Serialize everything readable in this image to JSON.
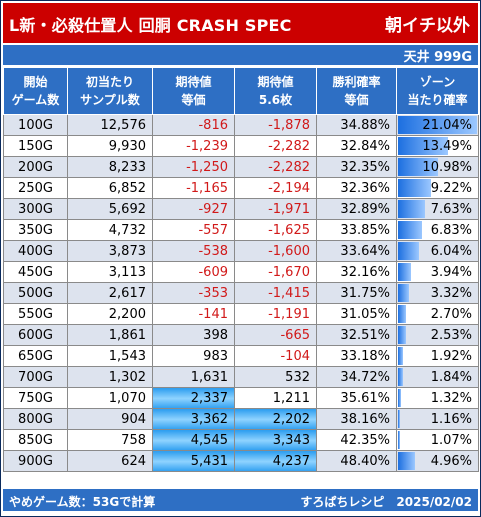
{
  "title": "L新・必殺仕置人 回胴 CRASH SPEC",
  "title_right": "朝イチ以外",
  "ceiling_label": "天井 999G",
  "headers": [
    [
      "開始",
      "ゲーム数"
    ],
    [
      "初当たり",
      "サンプル数"
    ],
    [
      "期待値",
      "等価"
    ],
    [
      "期待値",
      "5.6枚"
    ],
    [
      "勝利確率",
      "等価"
    ],
    [
      "ゾーン",
      "当たり確率"
    ]
  ],
  "rows": [
    {
      "game": "100G",
      "samples": "12,576",
      "ev_equal": "-816",
      "ev_56": "-1,878",
      "win_rate": "34.88%",
      "zone_rate": "21.04%"
    },
    {
      "game": "150G",
      "samples": "9,930",
      "ev_equal": "-1,239",
      "ev_56": "-2,282",
      "win_rate": "32.84%",
      "zone_rate": "13.49%"
    },
    {
      "game": "200G",
      "samples": "8,233",
      "ev_equal": "-1,250",
      "ev_56": "-2,282",
      "win_rate": "32.35%",
      "zone_rate": "10.98%"
    },
    {
      "game": "250G",
      "samples": "6,852",
      "ev_equal": "-1,165",
      "ev_56": "-2,194",
      "win_rate": "32.36%",
      "zone_rate": "9.22%"
    },
    {
      "game": "300G",
      "samples": "5,692",
      "ev_equal": "-927",
      "ev_56": "-1,971",
      "win_rate": "32.89%",
      "zone_rate": "7.63%"
    },
    {
      "game": "350G",
      "samples": "4,732",
      "ev_equal": "-557",
      "ev_56": "-1,625",
      "win_rate": "33.85%",
      "zone_rate": "6.83%"
    },
    {
      "game": "400G",
      "samples": "3,873",
      "ev_equal": "-538",
      "ev_56": "-1,600",
      "win_rate": "33.64%",
      "zone_rate": "6.04%"
    },
    {
      "game": "450G",
      "samples": "3,113",
      "ev_equal": "-609",
      "ev_56": "-1,670",
      "win_rate": "32.16%",
      "zone_rate": "3.94%"
    },
    {
      "game": "500G",
      "samples": "2,617",
      "ev_equal": "-353",
      "ev_56": "-1,415",
      "win_rate": "31.75%",
      "zone_rate": "3.32%"
    },
    {
      "game": "550G",
      "samples": "2,200",
      "ev_equal": "-141",
      "ev_56": "-1,191",
      "win_rate": "31.05%",
      "zone_rate": "2.70%"
    },
    {
      "game": "600G",
      "samples": "1,861",
      "ev_equal": "398",
      "ev_56": "-665",
      "win_rate": "32.51%",
      "zone_rate": "2.53%"
    },
    {
      "game": "650G",
      "samples": "1,543",
      "ev_equal": "983",
      "ev_56": "-104",
      "win_rate": "33.18%",
      "zone_rate": "1.92%"
    },
    {
      "game": "700G",
      "samples": "1,302",
      "ev_equal": "1,631",
      "ev_56": "532",
      "win_rate": "34.72%",
      "zone_rate": "1.84%"
    },
    {
      "game": "750G",
      "samples": "1,070",
      "ev_equal": "2,337",
      "ev_56": "1,211",
      "win_rate": "35.61%",
      "zone_rate": "1.32%"
    },
    {
      "game": "800G",
      "samples": "904",
      "ev_equal": "3,362",
      "ev_56": "2,202",
      "win_rate": "38.16%",
      "zone_rate": "1.16%"
    },
    {
      "game": "850G",
      "samples": "758",
      "ev_equal": "4,545",
      "ev_56": "3,343",
      "win_rate": "42.35%",
      "zone_rate": "1.07%"
    },
    {
      "game": "900G",
      "samples": "624",
      "ev_equal": "5,431",
      "ev_56": "4,237",
      "win_rate": "48.40%",
      "zone_rate": "4.96%"
    }
  ],
  "highlight_threshold": 2000,
  "footer_left": "やめゲーム数：53Gで計算",
  "footer_right": "すろぱちレシピ　2025/02/02",
  "colors": {
    "title_bg": "#cc0000",
    "header_bg": "#2e6fc4",
    "negative_text": "#d11919",
    "row_alt_bg": "#dde3ee",
    "highlight": "#4db0f5"
  }
}
